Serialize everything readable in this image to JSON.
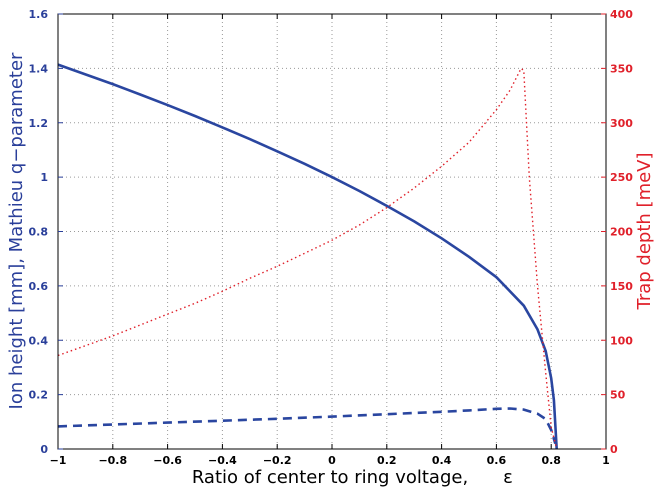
{
  "chart_data": {
    "type": "line",
    "xlabel": "Ratio of center to ring voltage,",
    "xlabel_symbol": "ε",
    "ylabel_left": "Ion height [mm], Mathieu q−parameter",
    "ylabel_right": "Trap depth [meV]",
    "xlim": [
      -1,
      1
    ],
    "ylim_left": [
      0,
      1.6
    ],
    "ylim_right": [
      0,
      400
    ],
    "x_ticks": [
      "−1",
      "−0.8",
      "−0.6",
      "−0.4",
      "−0.2",
      "0",
      "0.2",
      "0.4",
      "0.6",
      "0.8",
      "1"
    ],
    "y_left_ticks": [
      "0",
      "0.2",
      "0.4",
      "0.6",
      "0.8",
      "1",
      "1.2",
      "1.4",
      "1.6"
    ],
    "y_right_ticks": [
      "0",
      "50",
      "100",
      "150",
      "200",
      "250",
      "300",
      "350",
      "400"
    ],
    "grid": true,
    "colors": {
      "left_axis": "#2a3f9a",
      "right_axis": "#e0202a",
      "series_solid": "#2a46a0",
      "series_dashed": "#2a46a0",
      "series_dotted": "#e0202a"
    },
    "series": [
      {
        "style": "solid",
        "axis": "left",
        "x": [
          -1,
          -0.9,
          -0.8,
          -0.7,
          -0.6,
          -0.5,
          -0.4,
          -0.3,
          -0.2,
          -0.1,
          0,
          0.1,
          0.2,
          0.3,
          0.4,
          0.5,
          0.6,
          0.7,
          0.75,
          0.78,
          0.8,
          0.81,
          0.82
        ],
        "y": [
          1.414,
          1.378,
          1.342,
          1.304,
          1.265,
          1.225,
          1.183,
          1.14,
          1.095,
          1.049,
          1.0,
          0.949,
          0.894,
          0.837,
          0.775,
          0.707,
          0.632,
          0.527,
          0.44,
          0.36,
          0.26,
          0.18,
          0.0
        ]
      },
      {
        "style": "dashed",
        "axis": "left",
        "x": [
          -1,
          -0.8,
          -0.6,
          -0.4,
          -0.2,
          0,
          0.2,
          0.4,
          0.5,
          0.6,
          0.65,
          0.7,
          0.75,
          0.78,
          0.8,
          0.815
        ],
        "y": [
          0.083,
          0.09,
          0.097,
          0.104,
          0.111,
          0.119,
          0.128,
          0.137,
          0.142,
          0.148,
          0.149,
          0.145,
          0.13,
          0.11,
          0.07,
          0.02
        ]
      },
      {
        "style": "dotted",
        "axis": "right",
        "x": [
          -1,
          -0.9,
          -0.8,
          -0.7,
          -0.6,
          -0.5,
          -0.4,
          -0.3,
          -0.2,
          -0.1,
          0,
          0.1,
          0.2,
          0.3,
          0.4,
          0.5,
          0.6,
          0.65,
          0.69,
          0.7,
          0.72,
          0.75,
          0.78,
          0.8,
          0.82
        ],
        "y": [
          86,
          95,
          104,
          114,
          124,
          134,
          145,
          157,
          168,
          180,
          192,
          206,
          222,
          240,
          260,
          282,
          312,
          330,
          350,
          348,
          250,
          150,
          70,
          20,
          0
        ]
      }
    ]
  }
}
